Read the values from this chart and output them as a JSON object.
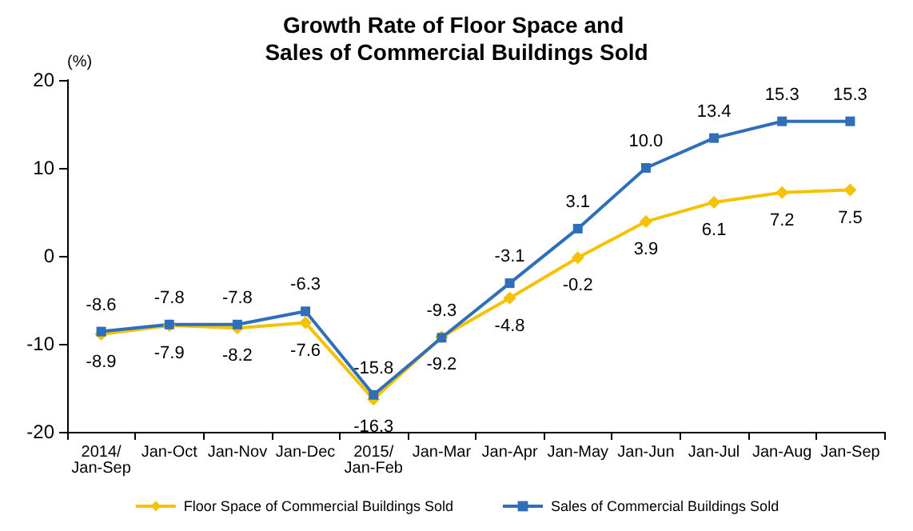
{
  "chart_data": {
    "type": "line",
    "title": "Growth Rate of Floor Space and Sales of Commercial Buildings Sold",
    "ylabel": "(%)",
    "categories": [
      "2014/Jan-Sep",
      "Jan-Oct",
      "Jan-Nov",
      "Jan-Dec",
      "2015/Jan-Feb",
      "Jan-Mar",
      "Jan-Apr",
      "Jan-May",
      "Jan-Jun",
      "Jan-Jul",
      "Jan-Aug",
      "Jan-Sep"
    ],
    "series": [
      {
        "name": "Floor Space of Commercial Buildings Sold",
        "color": "#f5c200",
        "marker": "diamond",
        "values": [
          -8.9,
          -7.9,
          -8.2,
          -7.6,
          -16.3,
          -9.2,
          -4.8,
          -0.2,
          3.9,
          6.1,
          7.2,
          7.5
        ],
        "value_labels": [
          "-8.9",
          "-7.9",
          "-8.2",
          "-7.6",
          "-16.3",
          "-9.2",
          "-4.8",
          "-0.2",
          "3.9",
          "6.1",
          "7.2",
          "7.5"
        ]
      },
      {
        "name": "Sales of Commercial Buildings Sold",
        "color": "#2f6fba",
        "marker": "square",
        "values": [
          -8.6,
          -7.8,
          -7.8,
          -6.3,
          -15.8,
          -9.3,
          -3.1,
          3.1,
          10.0,
          13.4,
          15.3,
          15.3
        ],
        "value_labels": [
          "-8.6",
          "-7.8",
          "-7.8",
          "-6.3",
          "-15.8",
          "-9.3",
          "-3.1",
          "3.1",
          "10.0",
          "13.4",
          "15.3",
          "15.3"
        ]
      }
    ],
    "ylim": [
      -20,
      20
    ],
    "yticks": [
      -20,
      -10,
      0,
      10,
      20
    ],
    "grid": false,
    "legend": "bottom"
  }
}
